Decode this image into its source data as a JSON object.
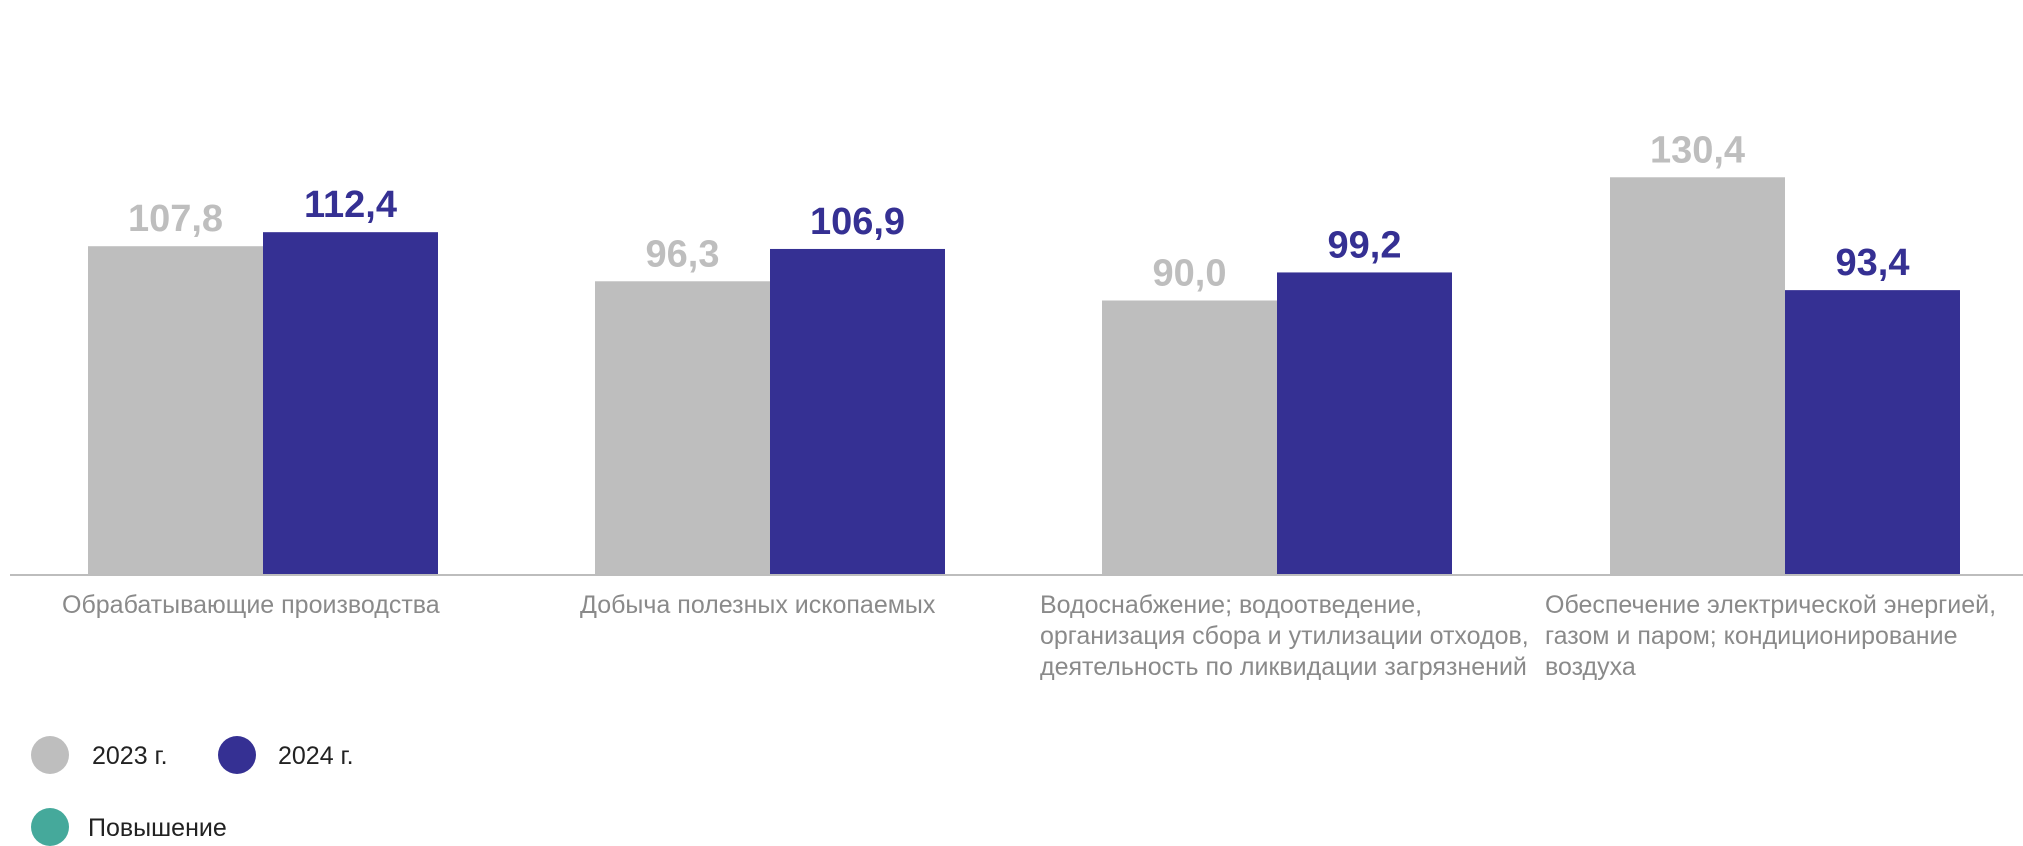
{
  "colors": {
    "series_2023": "#bebebe",
    "series_2024": "#353093",
    "increase": "#45a99b",
    "axis": "#bdbdbd",
    "category_text": "#8a8a8a"
  },
  "chart_data": {
    "type": "bar",
    "categories": [
      "Обрабатывающие производства",
      "Добыча полезных ископаемых",
      "Водоснабжение; водоотведение, организация сбора и утилизации отходов, деятельность по ликвидации загрязнений",
      "Обеспечение электрической энергией, газом и паром; кондиционирование воздуха"
    ],
    "series": [
      {
        "name": "2023 г.",
        "values": [
          107.8,
          96.3,
          90.0,
          130.4
        ],
        "labels": [
          "107,8",
          "96,3",
          "90,0",
          "130,4"
        ]
      },
      {
        "name": "2024 г.",
        "values": [
          112.4,
          106.9,
          99.2,
          93.4
        ],
        "labels": [
          "112,4",
          "106,9",
          "99,2",
          "93,4"
        ]
      }
    ],
    "grid": false,
    "legend_position": "bottom-left"
  },
  "legend": {
    "item_2023": "2023 г.",
    "item_2024": "2024 г.",
    "item_increase": "Повышение"
  }
}
